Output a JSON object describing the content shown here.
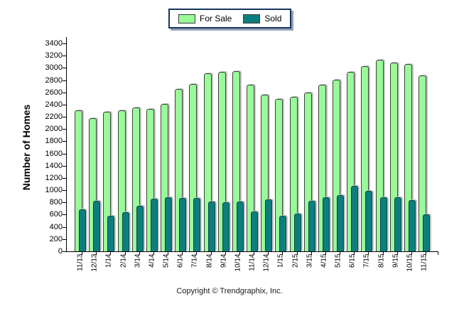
{
  "ylabel": "Number of Homes",
  "footer": "Copyright © Trendgraphix, Inc.",
  "legend": {
    "position": "top-center",
    "border_color": "#16365D"
  },
  "chart_data": {
    "type": "bar",
    "title": "",
    "xlabel": "",
    "ylabel": "Number of Homes",
    "ylim": [
      0,
      3400
    ],
    "ytick_step": 200,
    "grid": false,
    "legend_position": "top-center",
    "categories": [
      "11/13",
      "12/13",
      "1/14",
      "2/14",
      "3/14",
      "4/14",
      "5/14",
      "6/14",
      "7/14",
      "8/14",
      "9/14",
      "10/14",
      "11/14",
      "12/14",
      "1/15",
      "2/15",
      "3/15",
      "4/15",
      "5/15",
      "6/15",
      "7/15",
      "8/15",
      "9/15",
      "10/15",
      "11/15"
    ],
    "series": [
      {
        "name": "For Sale",
        "color": "#98FB98",
        "border": "#3f3f3f",
        "values": [
          2300,
          2180,
          2280,
          2300,
          2350,
          2330,
          2410,
          2650,
          2740,
          2910,
          2930,
          2950,
          2720,
          2560,
          2490,
          2530,
          2600,
          2720,
          2810,
          2930,
          3030,
          3130,
          3090,
          3060,
          2880
        ]
      },
      {
        "name": "Sold",
        "color": "#0D7E7E",
        "border": "#064949",
        "values": [
          690,
          830,
          580,
          640,
          750,
          860,
          880,
          870,
          870,
          810,
          800,
          820,
          650,
          850,
          580,
          620,
          830,
          880,
          920,
          1070,
          990,
          880,
          890,
          840,
          600
        ]
      }
    ]
  }
}
